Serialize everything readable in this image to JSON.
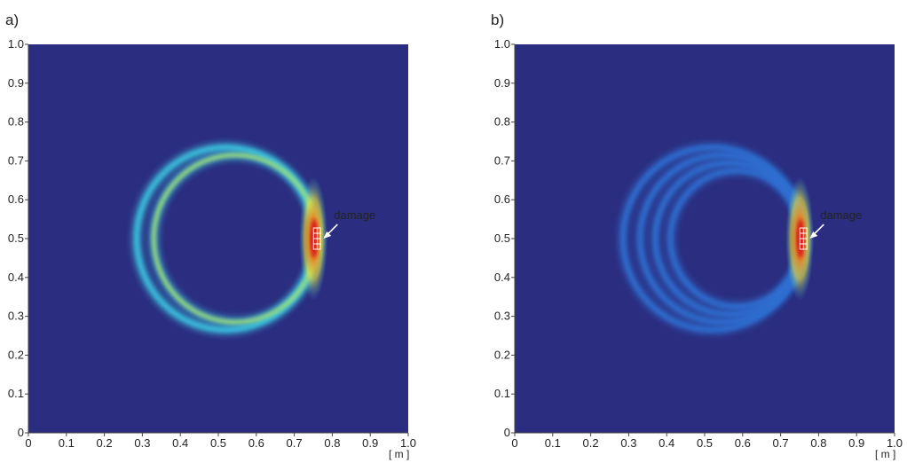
{
  "chart_data": [
    {
      "panel_label": "a)",
      "type": "heatmap",
      "xlabel": "[ m ]",
      "ylabel": "",
      "xlim": [
        0,
        1.0
      ],
      "ylim": [
        0,
        1.0
      ],
      "x_ticks": [
        "0",
        "0.1",
        "0.2",
        "0.3",
        "0.4",
        "0.5",
        "0.6",
        "0.7",
        "0.8",
        "0.9",
        "1.0"
      ],
      "y_ticks": [
        "0",
        "0.1",
        "0.2",
        "0.3",
        "0.4",
        "0.5",
        "0.6",
        "0.7",
        "0.8",
        "0.9",
        "1.0"
      ],
      "background_color": "#2b2d80",
      "colormap": "jet",
      "rings": [
        {
          "cx": 0.52,
          "cy": 0.5,
          "r": 0.235,
          "intensity": 0.45
        },
        {
          "cx": 0.545,
          "cy": 0.5,
          "r": 0.215,
          "intensity": 0.55
        }
      ],
      "hotspot": {
        "x": 0.755,
        "y": 0.5,
        "intensity": 1.0
      },
      "annotation": {
        "text": "damage",
        "x": 0.76,
        "y": 0.5
      }
    },
    {
      "panel_label": "b)",
      "type": "heatmap",
      "xlabel": "[ m ]",
      "ylabel": "",
      "xlim": [
        0,
        1.0
      ],
      "ylim": [
        0,
        1.0
      ],
      "x_ticks": [
        "0",
        "0.1",
        "0.2",
        "0.3",
        "0.4",
        "0.5",
        "0.6",
        "0.7",
        "0.8",
        "0.9",
        "1.0"
      ],
      "y_ticks": [
        "0",
        "0.1",
        "0.2",
        "0.3",
        "0.4",
        "0.5",
        "0.6",
        "0.7",
        "0.8",
        "0.9",
        "1.0"
      ],
      "background_color": "#2b2d80",
      "colormap": "jet",
      "rings": [
        {
          "cx": 0.52,
          "cy": 0.5,
          "r": 0.235,
          "intensity": 0.22
        },
        {
          "cx": 0.545,
          "cy": 0.5,
          "r": 0.215,
          "intensity": 0.22
        },
        {
          "cx": 0.565,
          "cy": 0.5,
          "r": 0.195,
          "intensity": 0.2
        },
        {
          "cx": 0.585,
          "cy": 0.5,
          "r": 0.175,
          "intensity": 0.18
        }
      ],
      "hotspot": {
        "x": 0.755,
        "y": 0.5,
        "intensity": 1.0
      },
      "annotation": {
        "text": "damage",
        "x": 0.76,
        "y": 0.5
      }
    }
  ]
}
